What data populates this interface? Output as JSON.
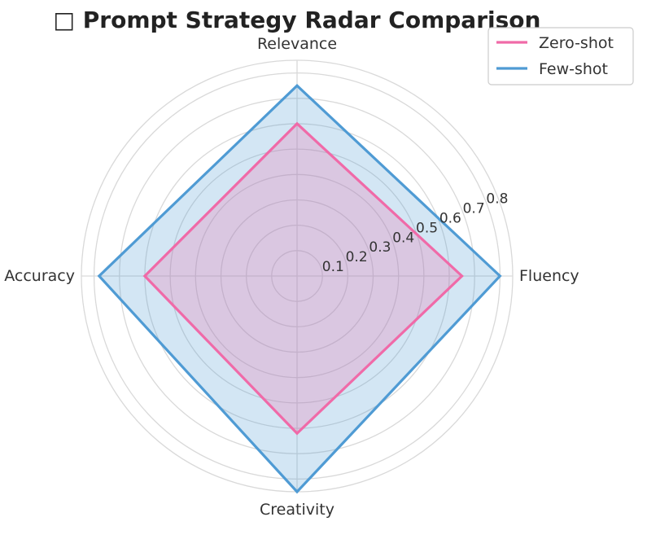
{
  "chart_data": {
    "type": "radar",
    "title": "□ Prompt Strategy Radar Comparison",
    "categories": [
      "Fluency",
      "Relevance",
      "Accuracy",
      "Creativity"
    ],
    "series": [
      {
        "name": "Zero-shot",
        "values": [
          0.65,
          0.6,
          0.6,
          0.62
        ],
        "color": "#f06aa8"
      },
      {
        "name": "Few-shot",
        "values": [
          0.8,
          0.75,
          0.78,
          0.85
        ],
        "color": "#4f9bd4"
      }
    ],
    "rlim": [
      0,
      0.85
    ],
    "rticks": [
      0.1,
      0.2,
      0.3,
      0.4,
      0.5,
      0.6,
      0.7,
      0.8
    ],
    "rtick_labels": [
      "0.1",
      "0.2",
      "0.3",
      "0.4",
      "0.5",
      "0.6",
      "0.7",
      "0.8"
    ],
    "grid": true,
    "legend_position": "top-right"
  }
}
